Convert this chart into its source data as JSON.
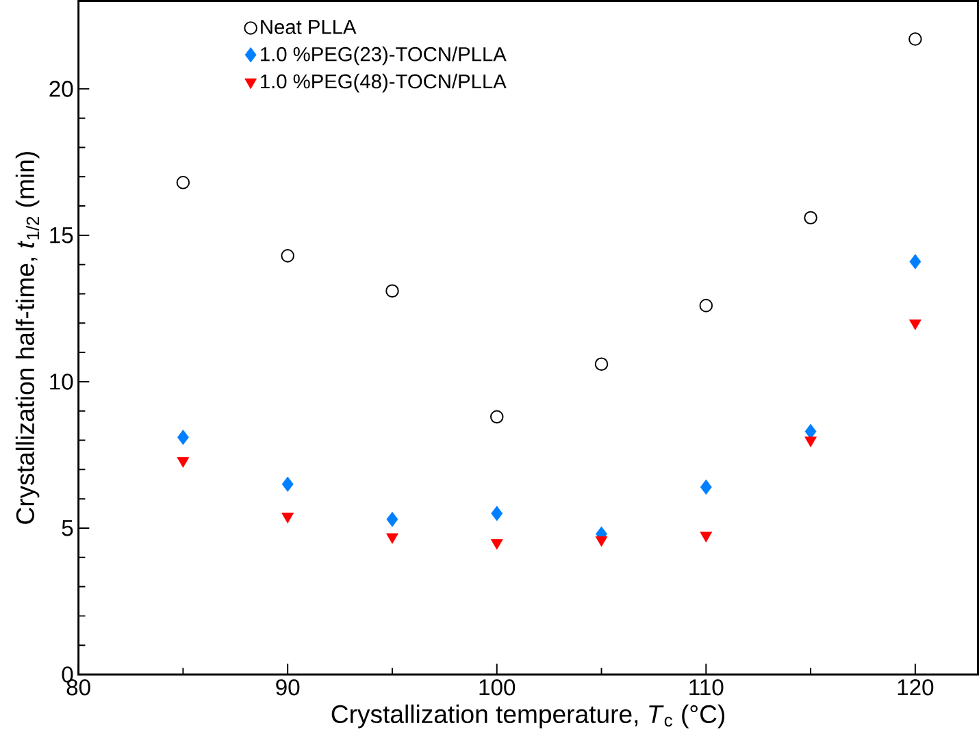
{
  "chart_data": {
    "type": "scatter",
    "xlabel": "Crystallization temperature, *T*$_{c}$ (°C)",
    "ylabel": "Crystallization half-time, *t*$_{1/2}$ (min)",
    "x": [
      85,
      90,
      95,
      100,
      105,
      110,
      115,
      120
    ],
    "series": [
      {
        "name": "Neat PLLA",
        "color": "#000000",
        "marker": "circle",
        "values": [
          16.8,
          14.3,
          13.1,
          8.8,
          10.6,
          12.6,
          15.6,
          21.7
        ]
      },
      {
        "name": "1.0 %PEG(23)-TOCN/PLLA",
        "color": "#0080ff",
        "marker": "diamond",
        "values": [
          8.1,
          6.5,
          5.3,
          5.5,
          4.8,
          6.4,
          8.3,
          14.1
        ]
      },
      {
        "name": "1.0 %PEG(48)-TOCN/PLLA",
        "color": "#ff0000",
        "marker": "triangle",
        "values": [
          7.3,
          5.4,
          4.7,
          4.5,
          4.6,
          4.75,
          8.0,
          12.0
        ]
      }
    ],
    "xlim": [
      80,
      123
    ],
    "ylim": [
      0,
      23
    ],
    "xticks": [
      80,
      90,
      100,
      110,
      120
    ],
    "yticks": [
      0,
      5,
      10,
      15,
      20
    ],
    "grid": false,
    "legend": "top"
  }
}
